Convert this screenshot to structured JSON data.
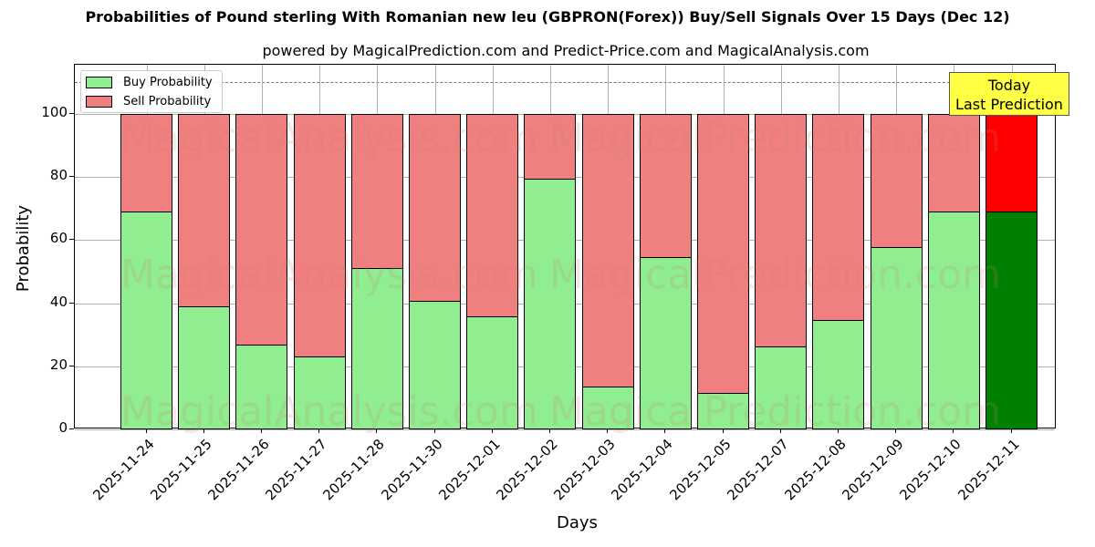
{
  "title": "Probabilities of Pound sterling With Romanian new leu (GBPRON(Forex)) Buy/Sell Signals Over 15 Days (Dec 12)",
  "subtitle": "powered by MagicalPrediction.com and Predict-Price.com and MagicalAnalysis.com",
  "legend": {
    "buy": "Buy Probability",
    "sell": "Sell Probability"
  },
  "annotation": {
    "line1": "Today",
    "line2": "Last Prediction"
  },
  "watermarks": [
    "MagicalAnalysis.com",
    "MagicalPrediction.com"
  ],
  "colors": {
    "buy": "#90ee90",
    "sell": "#f08080",
    "today_buy": "#008000",
    "today_sell": "#ff0000",
    "annotation_bg": "#ffff44"
  },
  "chart_data": {
    "type": "bar",
    "stacked": true,
    "title": "Probabilities of Pound sterling With Romanian new leu (GBPRON(Forex)) Buy/Sell Signals Over 15 Days (Dec 12)",
    "subtitle": "powered by MagicalPrediction.com and Predict-Price.com and MagicalAnalysis.com",
    "xlabel": "Days",
    "ylabel": "Probability",
    "ylim": [
      0,
      115
    ],
    "yticks": [
      0,
      20,
      40,
      60,
      80,
      100
    ],
    "grid": true,
    "legend_position": "upper left",
    "reference_line": 110,
    "categories": [
      "2025-11-24",
      "2025-11-25",
      "2025-11-26",
      "2025-11-27",
      "2025-11-28",
      "2025-11-30",
      "2025-12-01",
      "2025-12-02",
      "2025-12-03",
      "2025-12-04",
      "2025-12-05",
      "2025-12-07",
      "2025-12-08",
      "2025-12-09",
      "2025-12-10",
      "2025-12-11"
    ],
    "series": [
      {
        "name": "Buy Probability",
        "values": [
          69.1,
          39.0,
          26.9,
          23.1,
          51.2,
          40.8,
          35.8,
          79.5,
          13.6,
          54.6,
          11.6,
          26.3,
          34.7,
          57.8,
          69.1,
          69.1
        ]
      },
      {
        "name": "Sell Probability",
        "values": [
          30.9,
          61.0,
          73.1,
          76.9,
          48.8,
          59.2,
          64.2,
          20.5,
          86.4,
          45.4,
          88.4,
          73.7,
          65.3,
          42.2,
          30.9,
          30.9
        ]
      }
    ],
    "annotations": [
      "Today",
      "Last Prediction"
    ]
  }
}
